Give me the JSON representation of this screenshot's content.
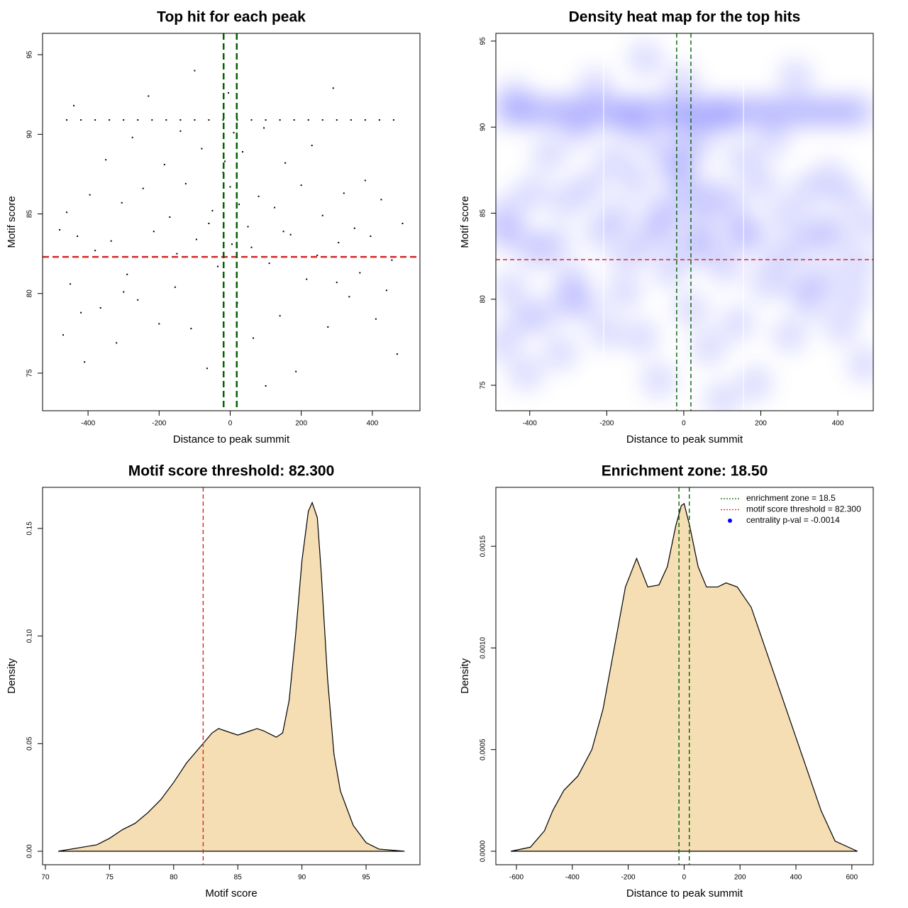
{
  "chart_data": [
    {
      "type": "scatter",
      "title": "Top hit for each peak",
      "xlabel": "Distance to peak summit",
      "ylabel": "Motif score",
      "x": [
        -480,
        -470,
        -460,
        -450,
        -440,
        -430,
        -420,
        -410,
        -395,
        -380,
        -365,
        -350,
        -335,
        -320,
        -305,
        -290,
        -275,
        -260,
        -245,
        -230,
        -215,
        -200,
        -185,
        -170,
        -155,
        -140,
        -125,
        -110,
        -95,
        -80,
        -65,
        -50,
        -35,
        -20,
        -5,
        5,
        20,
        35,
        50,
        65,
        80,
        95,
        110,
        125,
        140,
        155,
        170,
        185,
        200,
        215,
        230,
        245,
        260,
        275,
        290,
        305,
        320,
        335,
        350,
        365,
        380,
        395,
        410,
        425,
        440,
        455,
        470,
        485,
        -300,
        -150,
        0,
        150,
        300,
        -100,
        100,
        10,
        -15,
        25,
        -60,
        60,
        -460,
        -420,
        -380,
        -340,
        -300,
        -260,
        -220,
        -180,
        -140,
        -100,
        -60,
        -20,
        20,
        60,
        100,
        140,
        180,
        220,
        260,
        300,
        340,
        380,
        420,
        460
      ],
      "y": [
        84,
        77.4,
        85.1,
        80.6,
        91.8,
        83.6,
        78.8,
        75.7,
        86.2,
        82.7,
        79.1,
        88.4,
        83.3,
        76.9,
        85.7,
        81.2,
        89.8,
        79.6,
        86.6,
        92.4,
        83.9,
        78.1,
        88.1,
        84.8,
        80.4,
        90.2,
        86.9,
        77.8,
        83.4,
        89.1,
        75.3,
        85.2,
        81.7,
        87.6,
        92.6,
        83.1,
        79.4,
        88.9,
        84.2,
        77.2,
        86.1,
        90.4,
        81.9,
        85.4,
        78.6,
        88.2,
        83.7,
        75.1,
        86.8,
        80.9,
        89.3,
        82.4,
        84.9,
        77.9,
        92.9,
        83.2,
        86.3,
        79.8,
        84.1,
        81.3,
        87.1,
        83.6,
        78.4,
        85.9,
        80.2,
        82.1,
        76.2,
        84.4,
        80.1,
        82.5,
        86.7,
        83.9,
        80.7,
        94,
        74.2,
        90.1,
        88.3,
        85.6,
        84.4,
        82.9,
        90.9,
        90.9,
        90.9,
        90.9,
        90.9,
        90.9,
        90.9,
        90.9,
        90.9,
        90.9,
        90.9,
        90.9,
        90.9,
        90.9,
        90.9,
        90.9,
        90.9,
        90.9,
        90.9,
        90.9,
        90.9,
        90.9,
        90.9,
        90.9
      ],
      "color": "#000000",
      "xlim": [
        -528,
        534
      ],
      "ylim": [
        72.64,
        96.34
      ],
      "xticks": [
        -400,
        -200,
        0,
        200,
        400
      ],
      "yticks": [
        75,
        80,
        85,
        90,
        95
      ],
      "hlines": [
        82.3
      ],
      "hline_color": "#d62728",
      "vlines": [
        -18.5,
        18.5
      ],
      "vline_color": "#006400"
    },
    {
      "type": "heatmap",
      "title": "Density heat map for the top hits",
      "xlabel": "Distance to peak summit",
      "ylabel": "Motif score",
      "xlim": [
        -488,
        492
      ],
      "ylim": [
        73.52,
        95.45
      ],
      "xticks": [
        -400,
        -200,
        0,
        200,
        400
      ],
      "yticks": [
        75,
        80,
        85,
        90,
        95
      ],
      "hlines": [
        82.3
      ],
      "hline_color": "#d62728",
      "vlines": [
        -18.5,
        18.5
      ],
      "vline_color": "#006400",
      "white_lines": [
        -208,
        155
      ],
      "color": "#0000ff"
    },
    {
      "type": "density",
      "title": "Motif score threshold: 82.300",
      "xlabel": "Motif score",
      "ylabel": "Density",
      "x": [
        71,
        74,
        75,
        76,
        77,
        78,
        79,
        80,
        81,
        82,
        83,
        83.5,
        84,
        85,
        86,
        86.5,
        87,
        88,
        88.5,
        89,
        89.5,
        90,
        90.5,
        90.8,
        91.2,
        91.5,
        92,
        92.5,
        93,
        94,
        95,
        96,
        98
      ],
      "y": [
        0,
        0.003,
        0.006,
        0.01,
        0.013,
        0.018,
        0.024,
        0.032,
        0.041,
        0.048,
        0.055,
        0.057,
        0.056,
        0.054,
        0.056,
        0.057,
        0.056,
        0.053,
        0.055,
        0.07,
        0.1,
        0.135,
        0.158,
        0.162,
        0.155,
        0.13,
        0.08,
        0.045,
        0.028,
        0.012,
        0.004,
        0.001,
        0
      ],
      "color": "#f5deb3",
      "xlim": [
        69.78,
        99.2
      ],
      "ylim": [
        -0.00626,
        0.1691
      ],
      "xticks": [
        70,
        75,
        80,
        85,
        90,
        95
      ],
      "yticks": [
        {
          "value": 0,
          "label": "0.00"
        },
        {
          "value": 0.05,
          "label": "0.05"
        },
        {
          "value": 0.1,
          "label": "0.10"
        },
        {
          "value": 0.15,
          "label": "0.15"
        }
      ],
      "vlines": [
        82.3
      ],
      "vline_color": "#d62728"
    },
    {
      "type": "density",
      "title": "Enrichment zone: 18.50",
      "xlabel": "Distance to peak summit",
      "ylabel": "Density",
      "x": [
        -620,
        -550,
        -500,
        -470,
        -430,
        -380,
        -330,
        -290,
        -250,
        -210,
        -170,
        -130,
        -90,
        -60,
        -30,
        -10,
        0,
        20,
        50,
        80,
        120,
        150,
        190,
        240,
        290,
        340,
        390,
        440,
        490,
        540,
        620
      ],
      "y": [
        0,
        2e-05,
        0.0001,
        0.0002,
        0.0003,
        0.00037,
        0.0005,
        0.0007,
        0.001,
        0.0013,
        0.00144,
        0.0013,
        0.00131,
        0.0014,
        0.0016,
        0.0017,
        0.00171,
        0.0016,
        0.0014,
        0.0013,
        0.0013,
        0.00132,
        0.0013,
        0.0012,
        0.001,
        0.0008,
        0.0006,
        0.0004,
        0.0002,
        5e-05,
        0
      ],
      "color": "#f5deb3",
      "xlim": [
        -673.6,
        676.6
      ],
      "ylim": [
        -6.63e-05,
        0.00179
      ],
      "xticks": [
        -600,
        -400,
        -200,
        0,
        200,
        400,
        600
      ],
      "yticks": [
        {
          "value": 0,
          "label": "0.0000"
        },
        {
          "value": 0.0005,
          "label": "0.0005"
        },
        {
          "value": 0.001,
          "label": "0.0010"
        },
        {
          "value": 0.0015,
          "label": "0.0015"
        }
      ],
      "vlines": [
        -18.5,
        18.5
      ],
      "vline_color": "#006400",
      "legend_position": "topright",
      "legend": [
        {
          "label": "enrichment zone = 18.5",
          "color": "#006400",
          "symbol": "line"
        },
        {
          "label": "motif score threshold = 82.300",
          "color": "#d62728",
          "symbol": "line"
        },
        {
          "label": "centrality p-val = -0.0014",
          "color": "#0000ff",
          "symbol": "dot"
        }
      ]
    }
  ]
}
